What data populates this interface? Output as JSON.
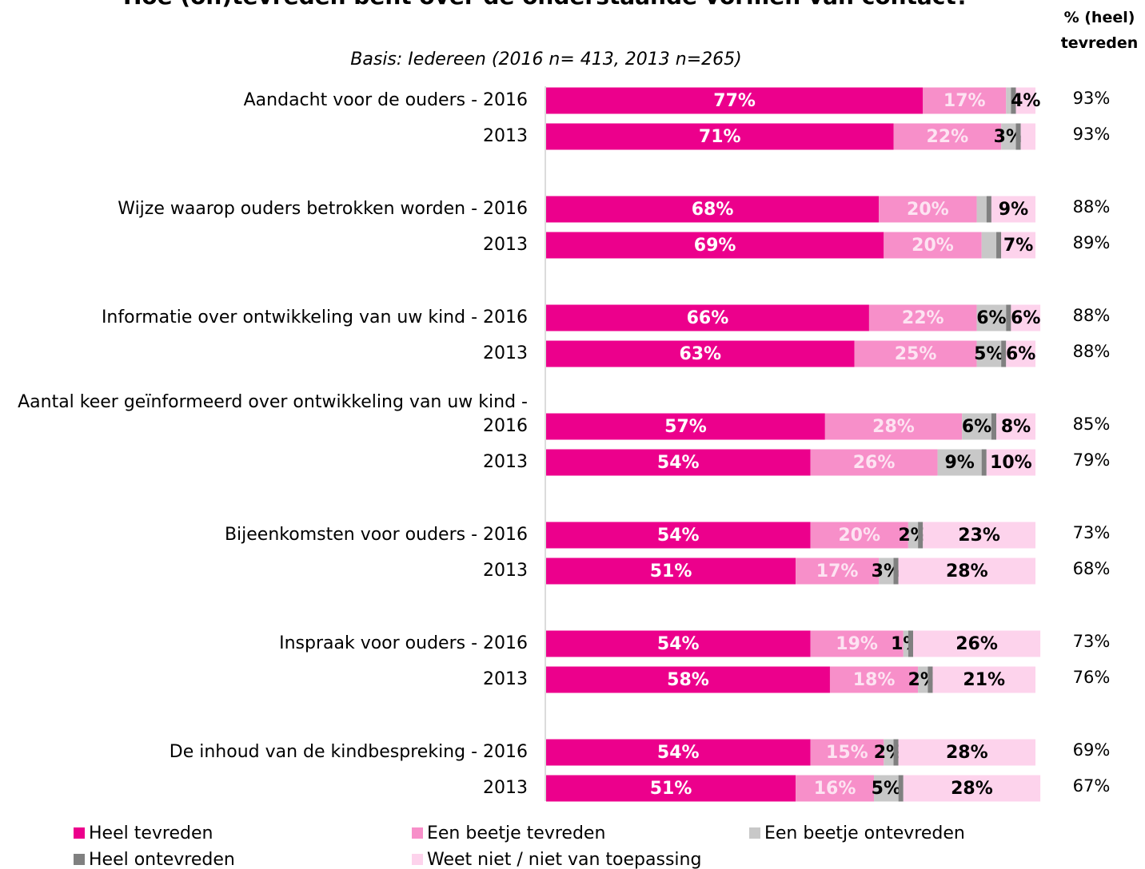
{
  "chart_data": {
    "type": "stacked-bar-horizontal",
    "title": "Hoe (on)tevreden bent over de onderstaande vormen van contact?",
    "subtitle": "Basis: Iedereen (2016 n= 413, 2013 n=265)",
    "right_header": "% (heel) tevreden",
    "categories": [
      "Aandacht voor de ouders - 2016",
      "2013",
      "Wijze waarop ouders betrokken worden - 2016",
      "2013",
      "Informatie over ontwikkeling van uw kind - 2016",
      "2013",
      "Aantal keer geïnformeerd over ontwikkeling van uw kind - 2016",
      "2013",
      "Bijeenkomsten voor ouders - 2016",
      "2013",
      "Inspraak voor ouders - 2016",
      "2013",
      "De inhoud van de kindbespreking - 2016",
      "2013"
    ],
    "xlim": [
      0,
      100
    ],
    "series": [
      {
        "name": "Heel tevreden",
        "color": "#ec008c",
        "label_color": "#ffffff",
        "values": [
          77,
          71,
          68,
          69,
          66,
          63,
          57,
          54,
          54,
          51,
          54,
          58,
          54,
          51
        ],
        "value_labels": [
          "77%",
          "71%",
          "68%",
          "69%",
          "66%",
          "63%",
          "57%",
          "54%",
          "54%",
          "51%",
          "54%",
          "58%",
          "54%",
          "51%"
        ]
      },
      {
        "name": "Een beetje tevreden",
        "color": "#f78fc9",
        "label_color": "#fde3f2",
        "values": [
          17,
          22,
          20,
          20,
          22,
          25,
          28,
          26,
          20,
          17,
          19,
          18,
          15,
          16
        ],
        "value_labels": [
          "17%",
          "22%",
          "20%",
          "20%",
          "22%",
          "25%",
          "28%",
          "26%",
          "20%",
          "17%",
          "19%",
          "18%",
          "15%",
          "16%"
        ]
      },
      {
        "name": "Een beetje ontevreden",
        "color": "#c8c8c8",
        "label_color": "#000000",
        "values": [
          1,
          3,
          2,
          3,
          6,
          5,
          6,
          9,
          2,
          3,
          1,
          2,
          2,
          5
        ],
        "value_labels": [
          null,
          "3%",
          null,
          null,
          "6%",
          "5%",
          "6%",
          "9%",
          "2%",
          "3%",
          "1%",
          "2%",
          "2%",
          "5%"
        ]
      },
      {
        "name": "Heel ontevreden",
        "color": "#808080",
        "label_color": "#000000",
        "values": [
          1,
          1,
          1,
          1,
          1,
          1,
          1,
          1,
          1,
          1,
          1,
          1,
          1,
          1
        ],
        "value_labels": [
          null,
          null,
          null,
          null,
          null,
          null,
          null,
          null,
          null,
          null,
          null,
          null,
          null,
          null
        ]
      },
      {
        "name": "Weet niet / niet van toepassing",
        "color": "#fdd3ec",
        "label_color": "#000000",
        "values": [
          4,
          3,
          9,
          7,
          6,
          6,
          8,
          10,
          23,
          28,
          26,
          21,
          28,
          28
        ],
        "value_labels": [
          "4%",
          null,
          "9%",
          "7%",
          "6%",
          "6%",
          "8%",
          "10%",
          "23%",
          "28%",
          "26%",
          "21%",
          "28%",
          "28%"
        ]
      }
    ],
    "tevreden_values": [
      93,
      93,
      88,
      89,
      88,
      88,
      85,
      79,
      73,
      68,
      73,
      76,
      69,
      67
    ],
    "tevreden_labels": [
      "93%",
      "93%",
      "88%",
      "89%",
      "88%",
      "88%",
      "85%",
      "79%",
      "73%",
      "68%",
      "73%",
      "76%",
      "69%",
      "67%"
    ]
  }
}
